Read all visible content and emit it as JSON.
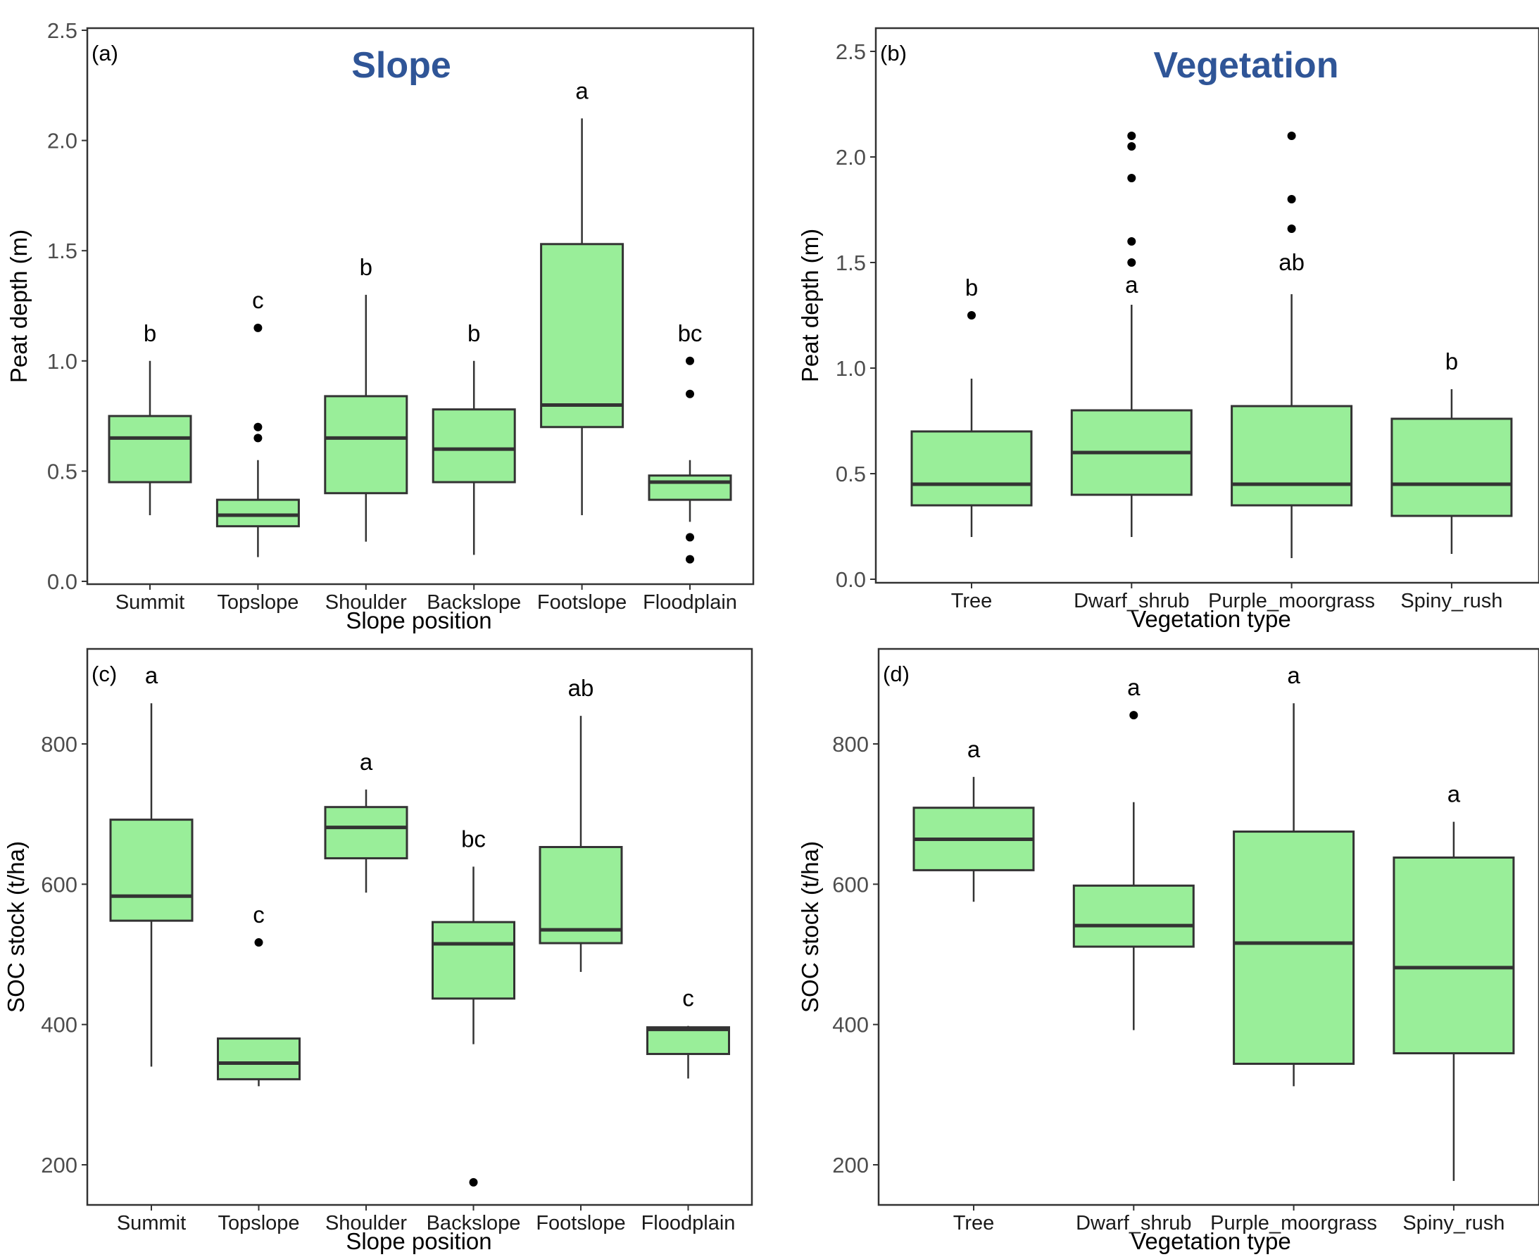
{
  "colors": {
    "box_fill": "#99ee99",
    "title": "#2f5597"
  },
  "chart_data": [
    {
      "panel": "(a)",
      "type": "box",
      "title": "Slope",
      "xlabel": "Slope position",
      "ylabel": "Peat depth (m)",
      "ylim": [
        0,
        2.5
      ],
      "yticks": [
        "0.0",
        "0.5",
        "1.0",
        "1.5",
        "2.0",
        "2.5"
      ],
      "categories": [
        "Summit",
        "Topslope",
        "Shoulder",
        "Backslope",
        "Footslope",
        "Floodplain"
      ],
      "boxes": [
        {
          "min": 0.3,
          "q1": 0.45,
          "median": 0.65,
          "q3": 0.75,
          "max": 1.0,
          "outliers": [],
          "letter": "b"
        },
        {
          "min": 0.11,
          "q1": 0.25,
          "median": 0.3,
          "q3": 0.37,
          "max": 0.55,
          "outliers": [
            1.15,
            0.7,
            0.65
          ],
          "letter": "c"
        },
        {
          "min": 0.18,
          "q1": 0.4,
          "median": 0.65,
          "q3": 0.84,
          "max": 1.3,
          "outliers": [],
          "letter": "b"
        },
        {
          "min": 0.12,
          "q1": 0.45,
          "median": 0.6,
          "q3": 0.78,
          "max": 1.0,
          "outliers": [],
          "letter": "b"
        },
        {
          "min": 0.3,
          "q1": 0.7,
          "median": 0.8,
          "q3": 1.53,
          "max": 2.1,
          "outliers": [],
          "letter": "a"
        },
        {
          "min": 0.27,
          "q1": 0.37,
          "median": 0.45,
          "q3": 0.48,
          "max": 0.55,
          "outliers": [
            1.0,
            0.85,
            0.2,
            0.1
          ],
          "letter": "bc"
        }
      ]
    },
    {
      "panel": "(b)",
      "type": "box",
      "title": "Vegetation",
      "xlabel": "Vegetation type",
      "ylabel": "Peat depth (m)",
      "ylim": [
        0,
        2.5
      ],
      "yticks": [
        "0.0",
        "0.5",
        "1.0",
        "1.5",
        "2.0",
        "2.5"
      ],
      "categories": [
        "Tree",
        "Dwarf_shrub",
        "Purple_moorgrass",
        "Spiny_rush"
      ],
      "boxes": [
        {
          "min": 0.2,
          "q1": 0.35,
          "median": 0.45,
          "q3": 0.7,
          "max": 0.95,
          "outliers": [
            1.25
          ],
          "letter": "b"
        },
        {
          "min": 0.2,
          "q1": 0.4,
          "median": 0.6,
          "q3": 0.8,
          "max": 1.3,
          "outliers": [
            2.1,
            2.05,
            1.9,
            1.6,
            1.5
          ],
          "letter": "a"
        },
        {
          "min": 0.1,
          "q1": 0.35,
          "median": 0.45,
          "q3": 0.82,
          "max": 1.35,
          "outliers": [
            2.1,
            1.8,
            1.66
          ],
          "letter": "ab"
        },
        {
          "min": 0.12,
          "q1": 0.3,
          "median": 0.45,
          "q3": 0.76,
          "max": 0.9,
          "outliers": [],
          "letter": "b"
        }
      ]
    },
    {
      "panel": "(c)",
      "type": "box",
      "title": "",
      "xlabel": "Slope position",
      "ylabel": "SOC stock (t/ha)",
      "ylim": [
        160,
        900
      ],
      "yticks": [
        "200",
        "400",
        "600",
        "800"
      ],
      "categories": [
        "Summit",
        "Topslope",
        "Shoulder",
        "Backslope",
        "Footslope",
        "Floodplain"
      ],
      "boxes": [
        {
          "min": 340,
          "q1": 548,
          "median": 583,
          "q3": 692,
          "max": 858,
          "outliers": [],
          "letter": "a"
        },
        {
          "min": 312,
          "q1": 322,
          "median": 345,
          "q3": 380,
          "max": 380,
          "outliers": [
            517
          ],
          "letter": "c"
        },
        {
          "min": 588,
          "q1": 637,
          "median": 681,
          "q3": 710,
          "max": 735,
          "outliers": [],
          "letter": "a"
        },
        {
          "min": 372,
          "q1": 437,
          "median": 515,
          "q3": 546,
          "max": 625,
          "outliers": [
            175
          ],
          "letter": "bc"
        },
        {
          "min": 475,
          "q1": 516,
          "median": 535,
          "q3": 653,
          "max": 840,
          "outliers": [],
          "letter": "ab"
        },
        {
          "min": 323,
          "q1": 358,
          "median": 393,
          "q3": 396,
          "max": 398,
          "outliers": [],
          "letter": "c"
        }
      ]
    },
    {
      "panel": "(d)",
      "type": "box",
      "title": "",
      "xlabel": "Vegetation type",
      "ylabel": "SOC stock (t/ha)",
      "ylim": [
        160,
        900
      ],
      "yticks": [
        "200",
        "400",
        "600",
        "800"
      ],
      "categories": [
        "Tree",
        "Dwarf_shrub",
        "Purple_moorgrass",
        "Spiny_rush"
      ],
      "boxes": [
        {
          "min": 575,
          "q1": 620,
          "median": 664,
          "q3": 709,
          "max": 753,
          "outliers": [],
          "letter": "a"
        },
        {
          "min": 392,
          "q1": 511,
          "median": 541,
          "q3": 598,
          "max": 717,
          "outliers": [
            841
          ],
          "letter": "a"
        },
        {
          "min": 312,
          "q1": 344,
          "median": 516,
          "q3": 675,
          "max": 858,
          "outliers": [],
          "letter": "a"
        },
        {
          "min": 177,
          "q1": 359,
          "median": 481,
          "q3": 638,
          "max": 689,
          "outliers": [],
          "letter": "a"
        }
      ]
    }
  ]
}
